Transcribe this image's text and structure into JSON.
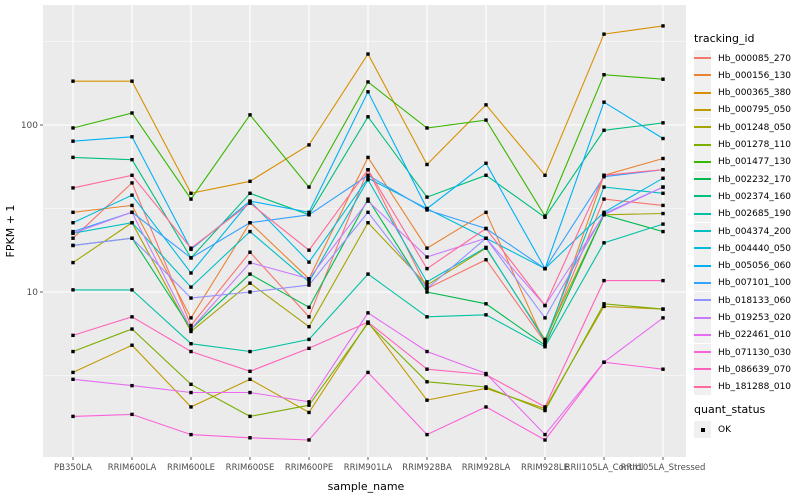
{
  "figure": {
    "y_axis_title": "FPKM + 1",
    "x_axis_title": "sample_name",
    "legend_title": "tracking_id",
    "quant_legend_title": "quant_status",
    "quant_item_label": "OK",
    "panel_bg_color": "#EBEBEB",
    "grid_color": "#FFFFFF",
    "tick_text_color": "#4D4D4D",
    "point_color": "#000000"
  },
  "chart_data": {
    "type": "line",
    "title": "",
    "xlabel": "sample_name",
    "ylabel": "FPKM + 1",
    "y_scale": "log10",
    "ylim": [
      1.03,
      520
    ],
    "y_major_ticks": [
      10,
      100
    ],
    "y_minor_ticks": [
      3.162,
      31.62,
      316.2
    ],
    "grid": true,
    "legend_position": "right",
    "point_marker": "black-square",
    "categories": [
      "PB350LA",
      "RRIM600LA",
      "RRIM600LE",
      "RRIM600SE",
      "RRIM600PE",
      "RRIM901LA",
      "RRIM928BA",
      "RRIM928LA",
      "RRIM928LE",
      "RRII105LA_Control",
      "RRII105LA_Stressed"
    ],
    "series": [
      {
        "name": "Hb_000085_270",
        "color": "#F8766D",
        "values": [
          21,
          45,
          6.3,
          17.3,
          7.1,
          54,
          10.5,
          15.6,
          5.0,
          36,
          33
        ]
      },
      {
        "name": "Hb_000156_130",
        "color": "#EA8331",
        "values": [
          30,
          33,
          7.0,
          26,
          12,
          64,
          18.3,
          30,
          4.9,
          50,
          63
        ]
      },
      {
        "name": "Hb_000365_380",
        "color": "#D89000",
        "values": [
          183,
          183,
          39,
          46,
          76,
          266,
          58,
          132,
          50,
          350,
          392
        ]
      },
      {
        "name": "Hb_000795_050",
        "color": "#C09B00",
        "values": [
          3.3,
          4.8,
          2.05,
          3.0,
          1.9,
          6.6,
          2.25,
          2.65,
          2.0,
          8.2,
          7.9
        ]
      },
      {
        "name": "Hb_001248_050",
        "color": "#A3A500",
        "values": [
          15,
          26,
          5.8,
          11.3,
          6.2,
          26,
          11,
          18.3,
          5.2,
          29,
          29.5
        ]
      },
      {
        "name": "Hb_001278_110",
        "color": "#7CAE00",
        "values": [
          4.4,
          6.0,
          2.8,
          1.8,
          2.1,
          6.5,
          2.9,
          2.7,
          1.95,
          8.5,
          7.9
        ]
      },
      {
        "name": "Hb_001477_130",
        "color": "#39B600",
        "values": [
          96,
          118,
          36,
          115,
          42.5,
          181,
          96,
          107,
          28.5,
          200,
          188
        ]
      },
      {
        "name": "Hb_002232_170",
        "color": "#00BB4E",
        "values": [
          19,
          21,
          6.0,
          12.8,
          8.1,
          36,
          10,
          8.5,
          4.8,
          29,
          23
        ]
      },
      {
        "name": "Hb_002374_160",
        "color": "#00BF7D",
        "values": [
          64,
          62,
          16,
          39,
          29,
          112,
          37,
          50,
          28,
          93,
          103
        ]
      },
      {
        "name": "Hb_002685_190",
        "color": "#00C1A3",
        "values": [
          10.3,
          10.3,
          4.9,
          4.4,
          5.2,
          12.8,
          7.1,
          7.3,
          4.7,
          19.7,
          25.5
        ]
      },
      {
        "name": "Hb_004374_200",
        "color": "#00BFC4",
        "values": [
          22.5,
          26,
          10.7,
          23,
          11.5,
          47,
          11.5,
          18.5,
          5.1,
          42.5,
          39
        ]
      },
      {
        "name": "Hb_004440_050",
        "color": "#00BAE0",
        "values": [
          26,
          38,
          13,
          35,
          15.1,
          48,
          31.6,
          21,
          13.8,
          30,
          48
        ]
      },
      {
        "name": "Hb_005056_060",
        "color": "#00B0F6",
        "values": [
          80,
          85,
          18,
          35,
          30,
          158,
          31.6,
          59,
          13.8,
          137,
          83
        ]
      },
      {
        "name": "Hb_007101_100",
        "color": "#35A2FF",
        "values": [
          23,
          30,
          16,
          26,
          29,
          50,
          31,
          24,
          13.8,
          49,
          54
        ]
      },
      {
        "name": "Hb_018133_060",
        "color": "#9590FF",
        "values": [
          19,
          21,
          9.2,
          10,
          11,
          30,
          10.5,
          21,
          7.0,
          29.5,
          42.5
        ]
      },
      {
        "name": "Hb_019253_020",
        "color": "#C77CFF",
        "values": [
          22.5,
          30,
          6.0,
          15,
          12,
          35,
          16.2,
          21,
          8.3,
          29,
          42.5
        ]
      },
      {
        "name": "Hb_022461_010",
        "color": "#E76BF3",
        "values": [
          3.0,
          2.75,
          2.5,
          2.5,
          2.2,
          7.5,
          4.4,
          3.25,
          1.4,
          3.8,
          7.0
        ]
      },
      {
        "name": "Hb_071130_030",
        "color": "#FA62DB",
        "values": [
          1.8,
          1.85,
          1.4,
          1.34,
          1.3,
          3.3,
          1.4,
          2.05,
          1.3,
          3.8,
          3.45
        ]
      },
      {
        "name": "Hb_086639_070",
        "color": "#FF62BC",
        "values": [
          5.5,
          7.1,
          4.4,
          3.35,
          4.6,
          6.6,
          3.45,
          3.2,
          2.05,
          11.7,
          11.7
        ]
      },
      {
        "name": "Hb_181288_010",
        "color": "#FF6A98",
        "values": [
          42,
          50,
          18.3,
          34,
          17.8,
          54,
          13.8,
          24,
          8.3,
          50,
          54
        ]
      }
    ],
    "quant_status": {
      "title": "quant_status",
      "items": [
        "OK"
      ]
    }
  }
}
